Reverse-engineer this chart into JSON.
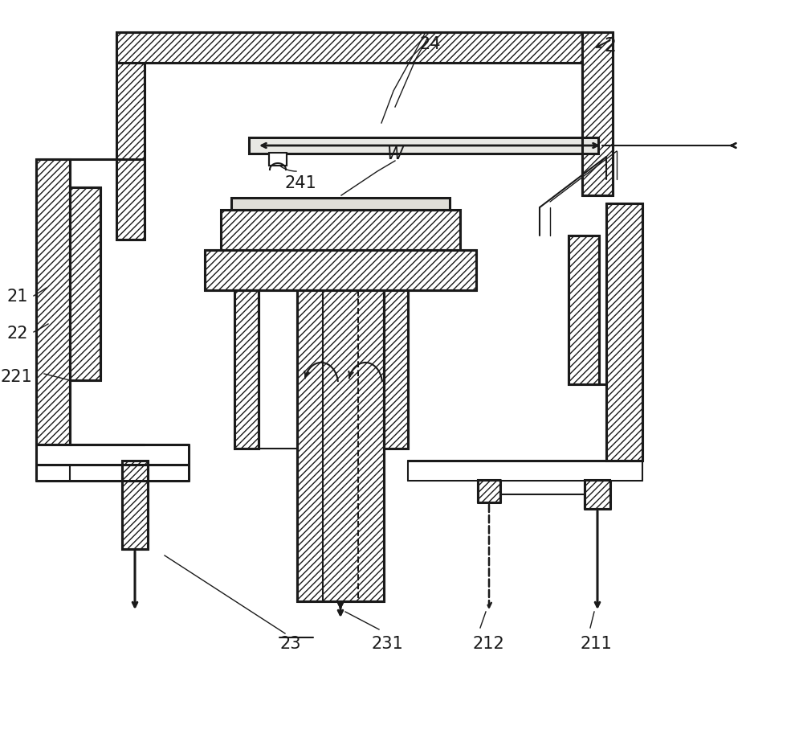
{
  "bg_color": "#ffffff",
  "line_color": "#1a1a1a",
  "hatch": "////",
  "lw_outer": 2.2,
  "lw_inner": 1.5,
  "lw_thin": 1.0,
  "fs_label": 15
}
